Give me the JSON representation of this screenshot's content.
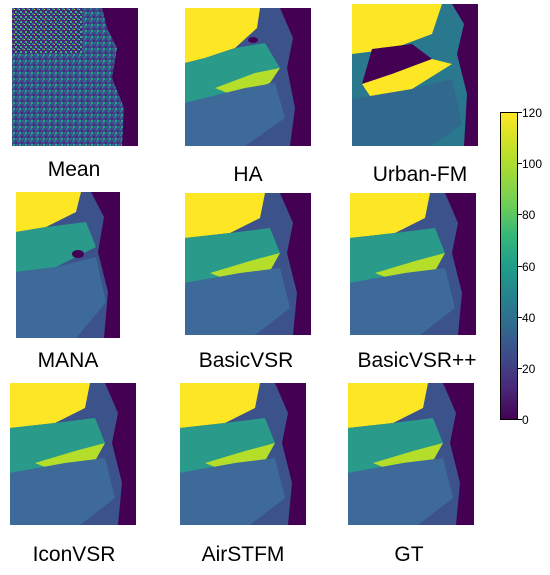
{
  "panels": [
    {
      "id": "mean",
      "label": "Mean"
    },
    {
      "id": "ha",
      "label": "HA"
    },
    {
      "id": "urbanfm",
      "label": "Urban-FM"
    },
    {
      "id": "mana",
      "label": "MANA"
    },
    {
      "id": "basicvsr",
      "label": "BasicVSR"
    },
    {
      "id": "basicvsrpp",
      "label": "BasicVSR++"
    },
    {
      "id": "iconvsr",
      "label": "IconVSR"
    },
    {
      "id": "airstfm",
      "label": "AirSTFM"
    },
    {
      "id": "gt",
      "label": "GT"
    }
  ],
  "colorbar": {
    "ticks": [
      "120",
      "100",
      "80",
      "60",
      "40",
      "20",
      "0"
    ],
    "colormap": "viridis",
    "colors": {
      "low": "#440154",
      "mid": "#21918c",
      "high": "#fde725"
    }
  }
}
